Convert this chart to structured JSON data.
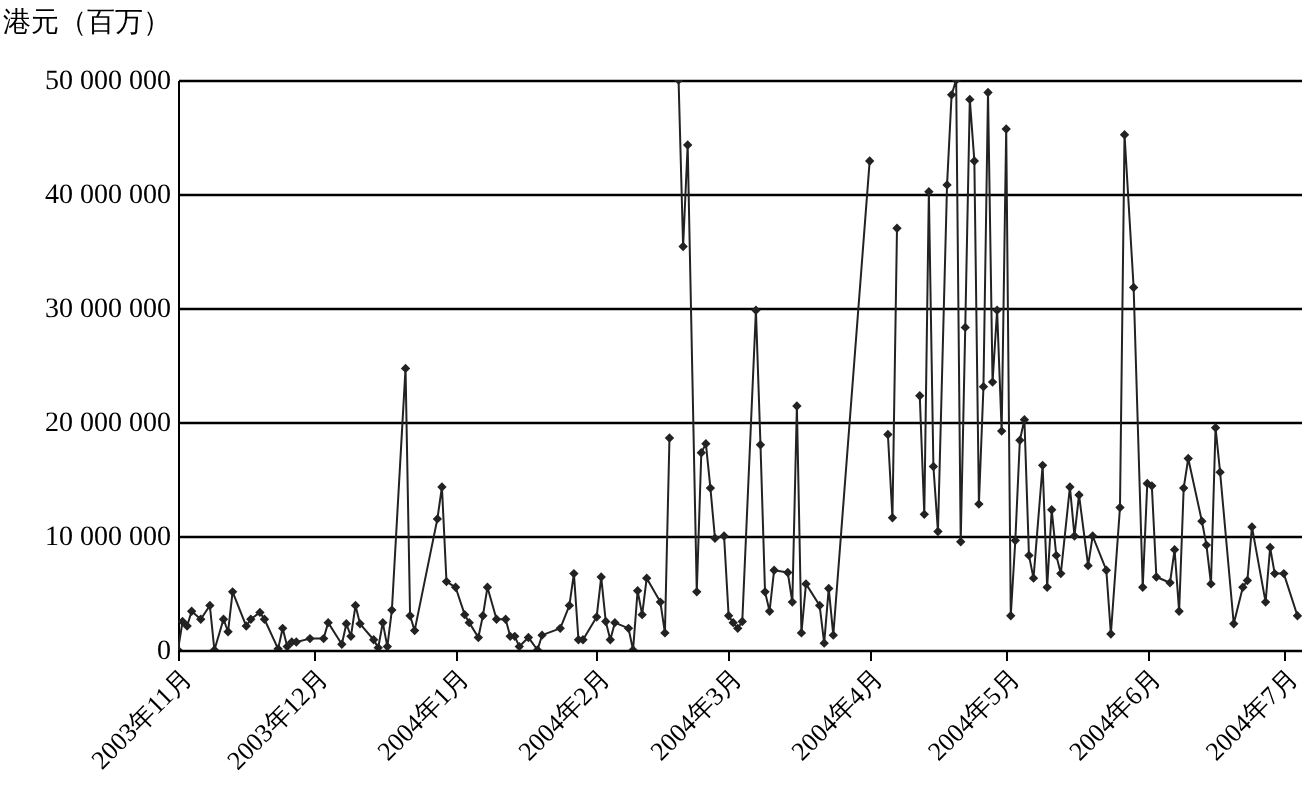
{
  "chart_data": {
    "type": "line",
    "ylabel": "港元（百万）",
    "xlim": [
      "2003-11-01",
      "2004-07-05"
    ],
    "xticks": [
      {
        "value": "2003-11-01",
        "label": "2003年11月"
      },
      {
        "value": "2003-12-01",
        "label": "2003年12月"
      },
      {
        "value": "2004-01-01",
        "label": "2004年1月"
      },
      {
        "value": "2004-02-01",
        "label": "2004年2月"
      },
      {
        "value": "2004-03-01",
        "label": "2004年3月"
      },
      {
        "value": "2004-04-01",
        "label": "2004年4月"
      },
      {
        "value": "2004-05-01",
        "label": "2004年5月"
      },
      {
        "value": "2004-06-01",
        "label": "2004年6月"
      },
      {
        "value": "2004-07-01",
        "label": "2004年7月"
      }
    ],
    "ylim": [
      0,
      50000000
    ],
    "yticks": [
      0,
      {
        "value": 10000000,
        "label": "10 000 000"
      },
      {
        "value": 20000000,
        "label": "20 000 000"
      },
      {
        "value": 30000000,
        "label": "30 000 000"
      },
      {
        "value": 40000000,
        "label": "40 000 000"
      },
      {
        "value": 50000000,
        "label": "50 000 000"
      }
    ],
    "grid": "y",
    "marker": "diamond",
    "line_style": "solid",
    "x": [
      "2003-11-01",
      "2003-11-02",
      "2003-11-03",
      "2003-11-04",
      "2003-11-06",
      "2003-11-08",
      "2003-11-09",
      "2003-11-11",
      "2003-11-12",
      "2003-11-13",
      "2003-11-16",
      "2003-11-17",
      "2003-11-19",
      "2003-11-20",
      "2003-11-23",
      "2003-11-24",
      "2003-11-25",
      "2003-11-26",
      "2003-11-27",
      "2003-11-30",
      "2003-12-03",
      "2003-12-04",
      "2003-12-07",
      "2003-12-08",
      "2003-12-09",
      "2003-12-10",
      "2003-12-11",
      "2003-12-14",
      "2003-12-15",
      "2003-12-16",
      "2003-12-17",
      "2003-12-18",
      "2003-12-21",
      "2003-12-22",
      "2003-12-23",
      "2003-12-28",
      "2003-12-29",
      "2003-12-30",
      "2004-01-01",
      "2004-01-03",
      "2004-01-04",
      "2004-01-06",
      "2004-01-07",
      "2004-01-08",
      "2004-01-10",
      "2004-01-12",
      "2004-01-13",
      "2004-01-14",
      "2004-01-15",
      "2004-01-17",
      "2004-01-19",
      "2004-01-20",
      "2004-01-24",
      "2004-01-26",
      "2004-01-27",
      "2004-01-28",
      "2004-01-29",
      "2004-02-01",
      "2004-02-02",
      "2004-02-03",
      "2004-02-04",
      "2004-02-05",
      "2004-02-08",
      "2004-02-09",
      "2004-02-10",
      "2004-02-11",
      "2004-02-12",
      "2004-02-15",
      "2004-02-16",
      "2004-02-17",
      "2004-02-18",
      "2004-02-19",
      "2004-02-20",
      "2004-02-21",
      "2004-02-23",
      "2004-02-24",
      "2004-02-25",
      "2004-02-26",
      "2004-02-27",
      "2004-02-29",
      "2004-03-01",
      "2004-03-02",
      "2004-03-03",
      "2004-03-04",
      "2004-03-07",
      "2004-03-08",
      "2004-03-09",
      "2004-03-10",
      "2004-03-11",
      "2004-03-14",
      "2004-03-15",
      "2004-03-16",
      "2004-03-17",
      "2004-03-18",
      "2004-03-21",
      "2004-03-22",
      "2004-03-23",
      "2004-03-24",
      "2004-04-01",
      "2004-04-02",
      "2004-04-05",
      "2004-04-06",
      "2004-04-07",
      "2004-04-08",
      "2004-04-12",
      "2004-04-13",
      "2004-04-14",
      "2004-04-15",
      "2004-04-16",
      "2004-04-18",
      "2004-04-19",
      "2004-04-20",
      "2004-04-21",
      "2004-04-22",
      "2004-04-23",
      "2004-04-24",
      "2004-04-25",
      "2004-04-26",
      "2004-04-27",
      "2004-04-28",
      "2004-04-29",
      "2004-04-30",
      "2004-05-01",
      "2004-05-02",
      "2004-05-03",
      "2004-05-04",
      "2004-05-05",
      "2004-05-06",
      "2004-05-07",
      "2004-05-09",
      "2004-05-10",
      "2004-05-11",
      "2004-05-12",
      "2004-05-13",
      "2004-05-15",
      "2004-05-16",
      "2004-05-17",
      "2004-05-19",
      "2004-05-20",
      "2004-05-23",
      "2004-05-24",
      "2004-05-26",
      "2004-05-27",
      "2004-05-29",
      "2004-05-31",
      "2004-06-01",
      "2004-06-02",
      "2004-06-03",
      "2004-06-06",
      "2004-06-07",
      "2004-06-08",
      "2004-06-09",
      "2004-06-10",
      "2004-06-13",
      "2004-06-14",
      "2004-06-15",
      "2004-06-16",
      "2004-06-17",
      "2004-06-20",
      "2004-06-22",
      "2004-06-23",
      "2004-06-24",
      "2004-06-27",
      "2004-06-28",
      "2004-06-29",
      "2004-07-01",
      "2004-07-04"
    ],
    "series": [
      {
        "color": "#222222",
        "values": [
          0,
          2500000,
          2100000,
          3400000,
          2700000,
          3900000,
          0,
          2700000,
          1600000,
          5100000,
          2100000,
          2700000,
          3300000,
          2700000,
          100000,
          1900000,
          300000,
          700000,
          700000,
          1000000,
          1000000,
          2400000,
          500000,
          2300000,
          1200000,
          3900000,
          2300000,
          900000,
          200000,
          2400000,
          300000,
          3500000,
          24700000,
          3000000,
          1700000,
          11500000,
          14300000,
          6000000,
          5500000,
          3100000,
          2400000,
          1100000,
          3000000,
          5500000,
          2700000,
          2700000,
          1200000,
          1200000,
          300000,
          1100000,
          0,
          1300000,
          1900000,
          3900000,
          6700000,
          900000,
          900000,
          2900000,
          6400000,
          2500000,
          900000,
          2400000,
          1900000,
          0,
          5200000,
          3100000,
          6300000,
          4200000,
          1500000,
          18600000,
          null,
          50000000,
          35400000,
          44300000,
          5100000,
          17300000,
          18100000,
          14200000,
          9800000,
          10000000,
          3000000,
          2400000,
          1900000,
          2500000,
          29800000,
          18000000,
          5100000,
          3400000,
          7000000,
          6800000,
          4200000,
          21400000,
          1500000,
          5800000,
          3900000,
          600000,
          5400000,
          1300000,
          42900000,
          null,
          18900000,
          11600000,
          37000000,
          null,
          22300000,
          11900000,
          40200000,
          16100000,
          10400000,
          40800000,
          48700000,
          50000000,
          9500000,
          28300000,
          48300000,
          42900000,
          12800000,
          23100000,
          48900000,
          23500000,
          29800000,
          19200000,
          45700000,
          3000000,
          9600000,
          18400000,
          20200000,
          8300000,
          6300000,
          16200000,
          5500000,
          12300000,
          8300000,
          6700000,
          14300000,
          10000000,
          13600000,
          7400000,
          10000000,
          7000000,
          1400000,
          12500000,
          45200000,
          31800000,
          5500000,
          14600000,
          14400000,
          6400000,
          5900000,
          8800000,
          3400000,
          14200000,
          16800000,
          11300000,
          9200000,
          5800000,
          19500000,
          15600000,
          2300000,
          5500000,
          6100000,
          10800000,
          4200000,
          9000000,
          6700000,
          6700000,
          3000000
        ]
      }
    ]
  }
}
